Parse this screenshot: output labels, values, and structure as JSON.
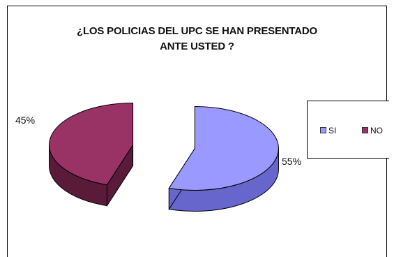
{
  "chart_data": {
    "type": "pie",
    "title": "¿LOS POLICIAS DEL UPC SE HAN PRESENTADO ANTE USTED ?",
    "title_lines": [
      "¿LOS POLICIAS DEL UPC SE HAN PRESENTADO",
      "ANTE USTED ?"
    ],
    "categories": [
      "SI",
      "NO"
    ],
    "values": [
      55,
      45
    ],
    "data_labels": [
      "55%",
      "45%"
    ],
    "colors": {
      "SI": "#9999ff",
      "SI_side": "#6666cc",
      "NO": "#993366",
      "NO_side": "#5a1a3a"
    },
    "exploded": true,
    "three_d": true,
    "legend_position": "right"
  }
}
